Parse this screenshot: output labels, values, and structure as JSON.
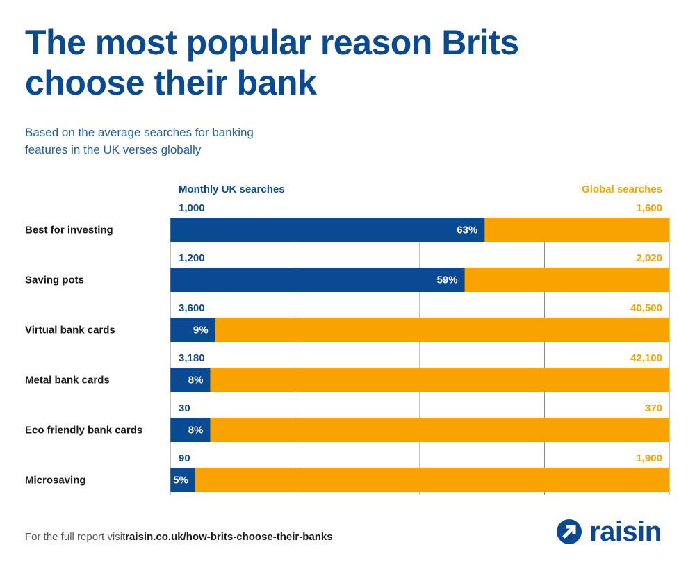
{
  "title": "The most popular reason Brits choose their bank",
  "subtitle": "Based on the average searches for banking features in the UK verses globally",
  "legend": {
    "uk": "Monthly UK searches",
    "global": "Global searches"
  },
  "footer": {
    "text": "For the full report visit",
    "link": "raisin.co.uk/how-brits-choose-their-banks"
  },
  "logo": {
    "name": "raisin",
    "icon": "raisin-arrow-logo-icon"
  },
  "colors": {
    "uk": "#0a4a92",
    "global": "#f8a300",
    "title": "#0a4a92"
  },
  "chart_data": {
    "type": "bar",
    "orientation": "horizontal",
    "stacked_percent": true,
    "categories": [
      "Best for investing",
      "Saving pots",
      "Virtual bank cards",
      "Metal bank cards",
      "Eco friendly bank cards",
      "Microsaving"
    ],
    "series": [
      {
        "name": "Monthly UK searches",
        "searches": [
          1000,
          1200,
          3600,
          3180,
          30,
          90
        ],
        "uk_labels": [
          "1,000",
          "1,200",
          "3,600",
          "3,180",
          "30",
          "90"
        ]
      },
      {
        "name": "Global searches",
        "searches": [
          1600,
          2020,
          40500,
          42100,
          370,
          1900
        ],
        "global_labels": [
          "1,600",
          "2,020",
          "40,500",
          "42,100",
          "370",
          "1,900"
        ]
      }
    ],
    "uk_share_percent": [
      63,
      59,
      9,
      8,
      8,
      5
    ],
    "percent_labels": [
      "63%",
      "59%",
      "9%",
      "8%",
      "8%",
      "5%"
    ],
    "xlim": [
      0,
      100
    ],
    "grid": true,
    "legend_position": "top"
  }
}
